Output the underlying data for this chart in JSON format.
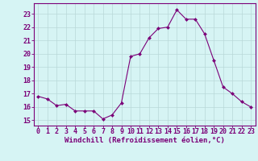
{
  "x": [
    0,
    1,
    2,
    3,
    4,
    5,
    6,
    7,
    8,
    9,
    10,
    11,
    12,
    13,
    14,
    15,
    16,
    17,
    18,
    19,
    20,
    21,
    22,
    23
  ],
  "y": [
    16.8,
    16.6,
    16.1,
    16.2,
    15.7,
    15.7,
    15.7,
    15.1,
    15.4,
    16.3,
    19.8,
    20.0,
    21.2,
    21.9,
    22.0,
    23.3,
    22.6,
    22.6,
    21.5,
    19.5,
    17.5,
    17.0,
    16.4,
    16.0
  ],
  "line_color": "#7B0078",
  "marker": "D",
  "marker_size": 2.0,
  "bg_color": "#d6f4f4",
  "grid_color": "#b8d8d8",
  "xlabel": "Windchill (Refroidissement éolien,°C)",
  "xlabel_fontsize": 6.5,
  "ylabel_ticks": [
    15,
    16,
    17,
    18,
    19,
    20,
    21,
    22,
    23
  ],
  "ylim": [
    14.6,
    23.8
  ],
  "xlim": [
    -0.5,
    23.5
  ],
  "tick_fontsize": 6.0,
  "tick_color": "#7B0078",
  "spine_color": "#7B0078",
  "linewidth": 0.8
}
